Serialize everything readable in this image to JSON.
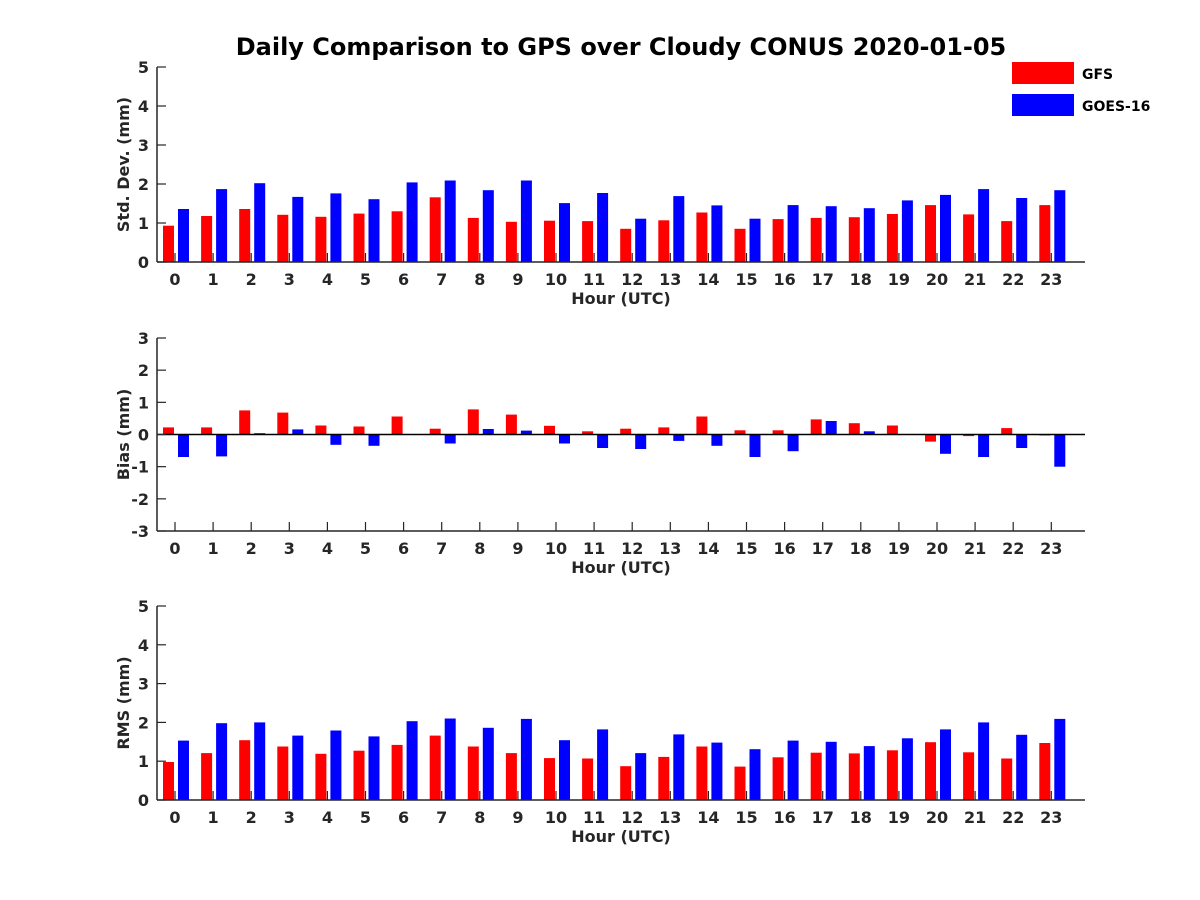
{
  "title": "Daily Comparison to GPS over Cloudy CONUS 2020-01-05",
  "legend": [
    {
      "name": "GFS",
      "color": "#ff0000"
    },
    {
      "name": "GOES-16",
      "color": "#0000ff"
    }
  ],
  "chart_data": [
    {
      "type": "bar",
      "title": "Daily Comparison to GPS over Cloudy CONUS 2020-01-05",
      "xlabel": "Hour (UTC)",
      "ylabel": "Std. Dev. (mm)",
      "ylim": [
        0,
        5
      ],
      "yticks": [
        0,
        1,
        2,
        3,
        4,
        5
      ],
      "categories": [
        "0",
        "1",
        "2",
        "3",
        "4",
        "5",
        "6",
        "7",
        "8",
        "9",
        "10",
        "11",
        "12",
        "13",
        "14",
        "15",
        "16",
        "17",
        "18",
        "19",
        "20",
        "21",
        "22",
        "23"
      ],
      "series": [
        {
          "name": "GFS",
          "color": "#ff0000",
          "values": [
            0.93,
            1.18,
            1.36,
            1.21,
            1.16,
            1.24,
            1.3,
            1.66,
            1.13,
            1.03,
            1.06,
            1.05,
            0.85,
            1.07,
            1.27,
            0.85,
            1.1,
            1.13,
            1.15,
            1.23,
            1.46,
            1.22,
            1.05,
            1.46
          ]
        },
        {
          "name": "GOES-16",
          "color": "#0000ff",
          "values": [
            1.36,
            1.87,
            2.02,
            1.67,
            1.76,
            1.61,
            2.04,
            2.09,
            1.84,
            2.09,
            1.51,
            1.77,
            1.11,
            1.69,
            1.45,
            1.11,
            1.46,
            1.43,
            1.38,
            1.58,
            1.72,
            1.87,
            1.64,
            1.84
          ]
        }
      ],
      "legend": "top-right"
    },
    {
      "type": "bar",
      "xlabel": "Hour (UTC)",
      "ylabel": "Bias (mm)",
      "ylim": [
        -3,
        3
      ],
      "yticks": [
        -3,
        -2,
        -1,
        0,
        1,
        2,
        3
      ],
      "categories": [
        "0",
        "1",
        "2",
        "3",
        "4",
        "5",
        "6",
        "7",
        "8",
        "9",
        "10",
        "11",
        "12",
        "13",
        "14",
        "15",
        "16",
        "17",
        "18",
        "19",
        "20",
        "21",
        "22",
        "23"
      ],
      "series": [
        {
          "name": "GFS",
          "color": "#ff0000",
          "values": [
            0.22,
            0.22,
            0.75,
            0.68,
            0.28,
            0.25,
            0.56,
            0.18,
            0.78,
            0.62,
            0.27,
            0.1,
            0.18,
            0.22,
            0.56,
            0.13,
            0.13,
            0.47,
            0.35,
            0.28,
            -0.22,
            -0.05,
            0.2,
            -0.03
          ]
        },
        {
          "name": "GOES-16",
          "color": "#0000ff",
          "values": [
            -0.7,
            -0.68,
            0.04,
            0.16,
            -0.32,
            -0.35,
            0.0,
            -0.28,
            0.17,
            0.12,
            -0.28,
            -0.42,
            -0.45,
            -0.2,
            -0.35,
            -0.7,
            -0.52,
            0.42,
            0.1,
            0.0,
            -0.6,
            -0.7,
            -0.42,
            -1.0
          ]
        }
      ]
    },
    {
      "type": "bar",
      "xlabel": "Hour (UTC)",
      "ylabel": "RMS (mm)",
      "ylim": [
        0,
        5
      ],
      "yticks": [
        0,
        1,
        2,
        3,
        4,
        5
      ],
      "categories": [
        "0",
        "1",
        "2",
        "3",
        "4",
        "5",
        "6",
        "7",
        "8",
        "9",
        "10",
        "11",
        "12",
        "13",
        "14",
        "15",
        "16",
        "17",
        "18",
        "19",
        "20",
        "21",
        "22",
        "23"
      ],
      "series": [
        {
          "name": "GFS",
          "color": "#ff0000",
          "values": [
            0.98,
            1.21,
            1.54,
            1.38,
            1.19,
            1.27,
            1.42,
            1.66,
            1.38,
            1.21,
            1.08,
            1.07,
            0.87,
            1.11,
            1.38,
            0.86,
            1.1,
            1.22,
            1.2,
            1.28,
            1.49,
            1.23,
            1.07,
            1.47
          ]
        },
        {
          "name": "GOES-16",
          "color": "#0000ff",
          "values": [
            1.53,
            1.98,
            2.0,
            1.66,
            1.79,
            1.64,
            2.03,
            2.1,
            1.86,
            2.09,
            1.54,
            1.82,
            1.21,
            1.69,
            1.48,
            1.31,
            1.53,
            1.5,
            1.39,
            1.59,
            1.82,
            2.0,
            1.68,
            2.09
          ]
        }
      ]
    }
  ]
}
